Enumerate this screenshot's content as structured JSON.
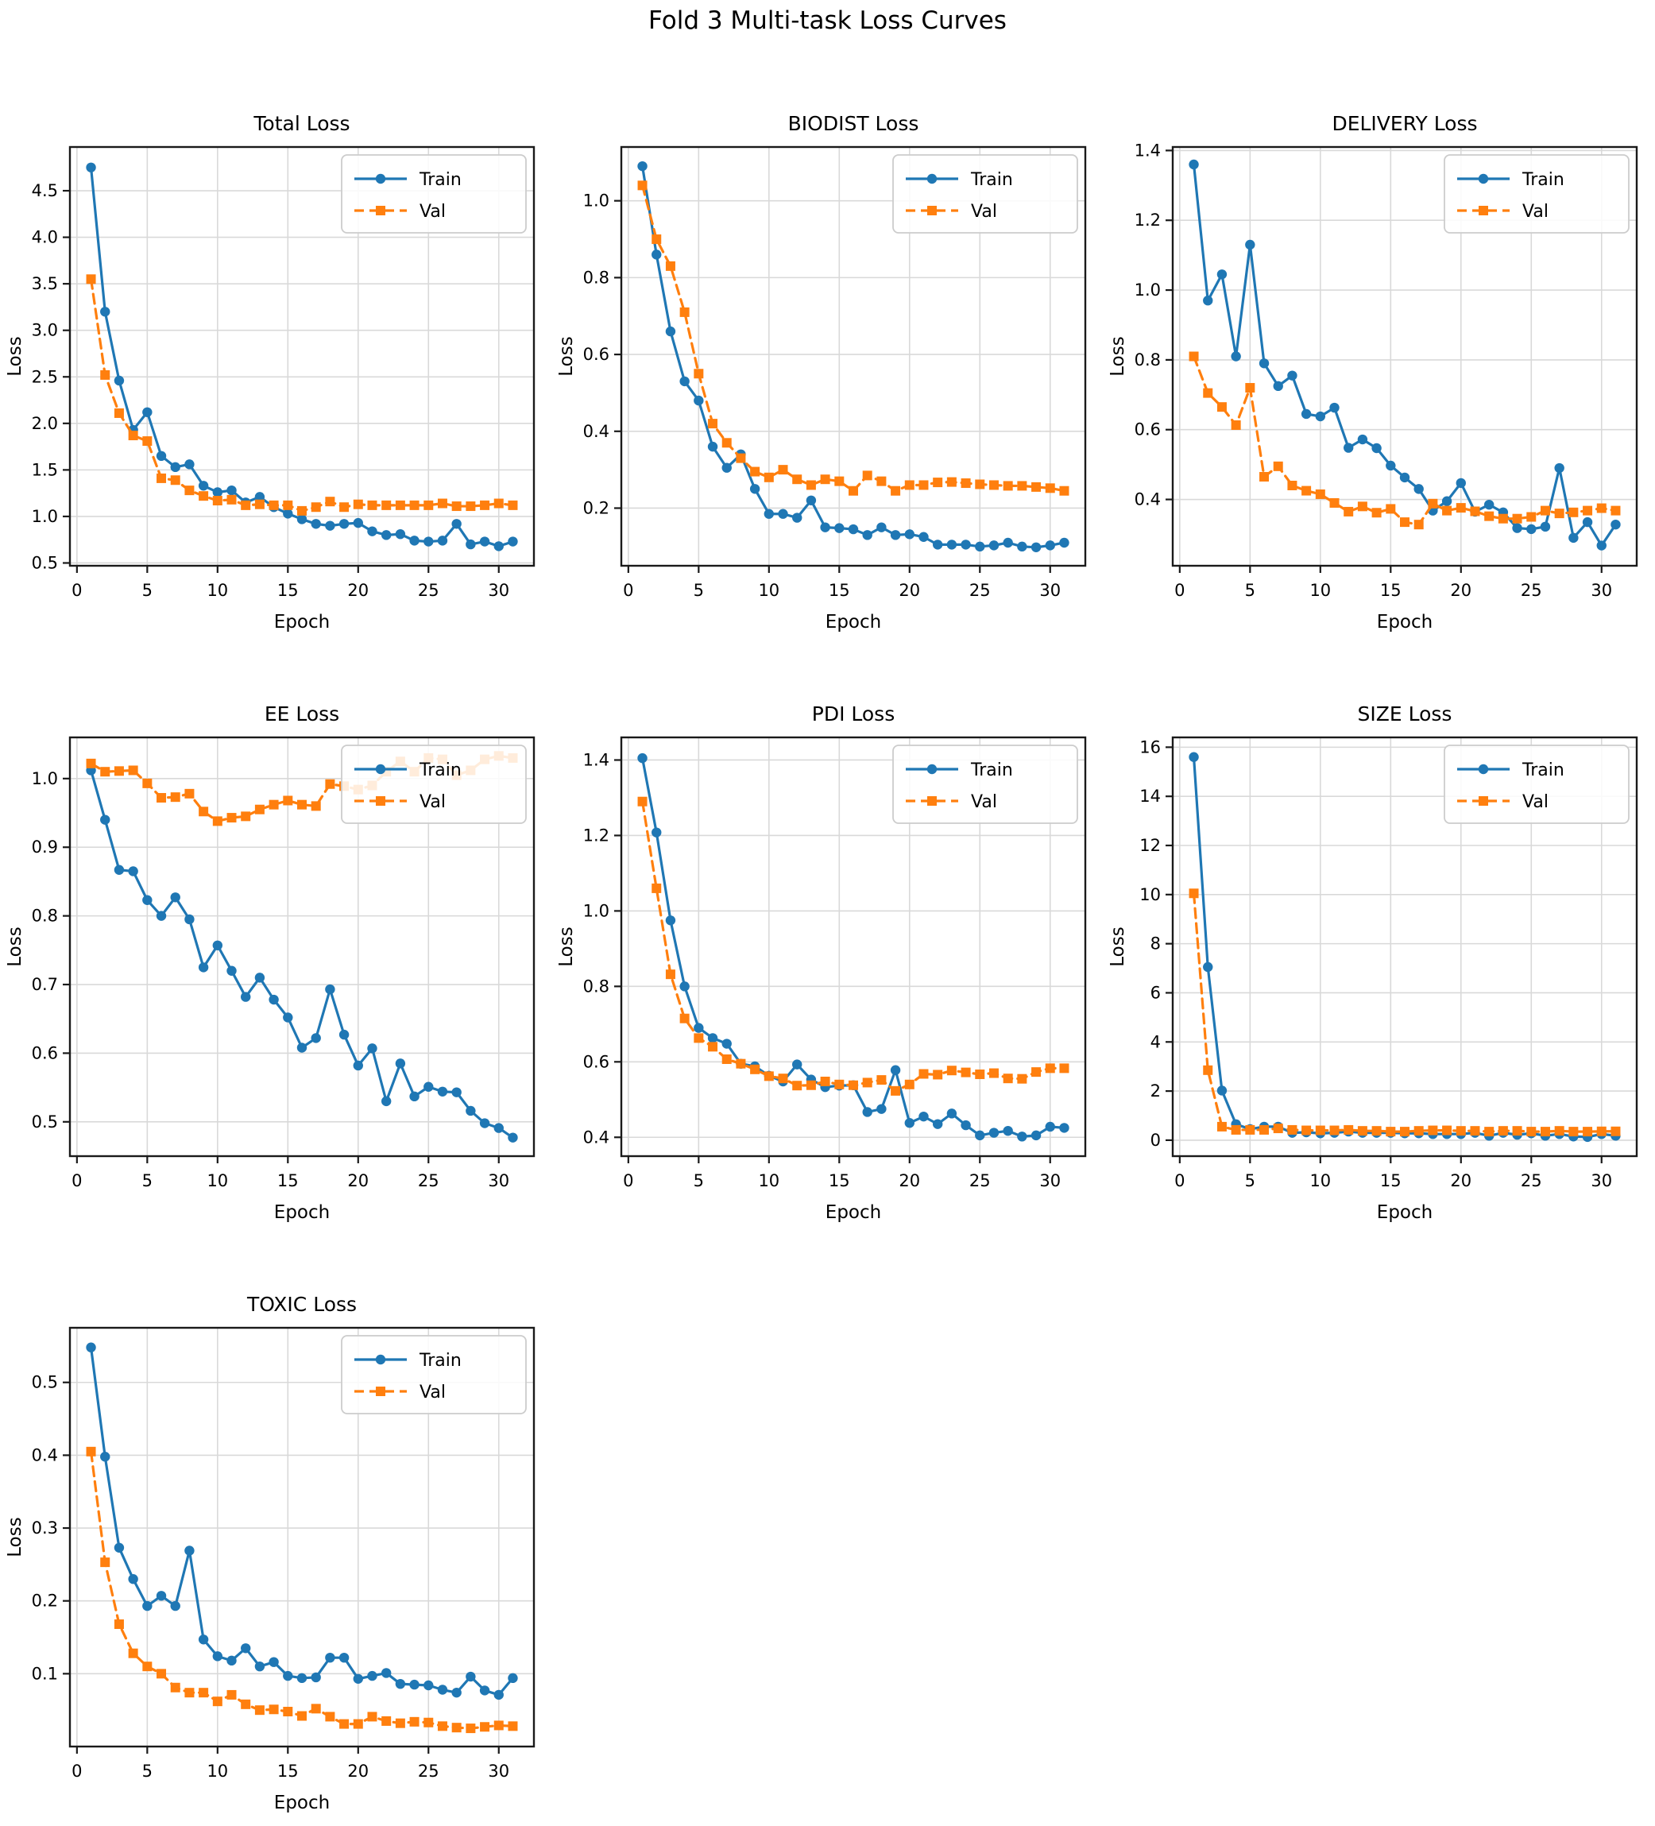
{
  "figure": {
    "title": "Fold 3 Multi-task Loss Curves"
  },
  "legend": {
    "position": "upper right",
    "train_label": "Train",
    "val_label": "Val"
  },
  "colors": {
    "train": "#1f77b4",
    "val": "#ff7f0e",
    "grid": "#d9d9d9",
    "spine": "#1a1a1a",
    "text": "#000000",
    "legend_border": "#cccccc",
    "legend_fill": "#ffffff"
  },
  "chart_data": [
    {
      "type": "line",
      "title": "Total Loss",
      "xlabel": "Epoch",
      "ylabel": "Loss",
      "x": [
        1,
        2,
        3,
        4,
        5,
        6,
        7,
        8,
        9,
        10,
        11,
        12,
        13,
        14,
        15,
        16,
        17,
        18,
        19,
        20,
        21,
        22,
        23,
        24,
        25,
        26,
        27,
        28,
        29,
        30,
        31
      ],
      "xlim": [
        -0.5,
        32.5
      ],
      "ylim": [
        0.47,
        4.97
      ],
      "xticks": [
        0,
        5,
        10,
        15,
        20,
        25,
        30
      ],
      "yticks": [
        0.5,
        1.0,
        1.5,
        2.0,
        2.5,
        3.0,
        3.5,
        4.0,
        4.5
      ],
      "ytick_labels": [
        "0.5",
        "1.0",
        "1.5",
        "2.0",
        "2.5",
        "3.0",
        "3.5",
        "4.0",
        "4.5"
      ],
      "grid": true,
      "legend_position": "upper right",
      "series": [
        {
          "name": "Train",
          "style": "solid",
          "marker": "circle",
          "values": [
            4.75,
            3.2,
            2.46,
            1.93,
            2.12,
            1.65,
            1.53,
            1.56,
            1.33,
            1.26,
            1.28,
            1.15,
            1.21,
            1.1,
            1.03,
            0.97,
            0.92,
            0.9,
            0.92,
            0.93,
            0.84,
            0.8,
            0.81,
            0.74,
            0.73,
            0.74,
            0.92,
            0.7,
            0.73,
            0.68,
            0.73
          ]
        },
        {
          "name": "Val",
          "style": "dashed",
          "marker": "square",
          "values": [
            3.55,
            2.52,
            2.11,
            1.87,
            1.81,
            1.41,
            1.39,
            1.28,
            1.22,
            1.17,
            1.18,
            1.12,
            1.13,
            1.12,
            1.12,
            1.06,
            1.1,
            1.16,
            1.1,
            1.13,
            1.12,
            1.12,
            1.12,
            1.12,
            1.12,
            1.14,
            1.11,
            1.11,
            1.12,
            1.14,
            1.12
          ]
        }
      ]
    },
    {
      "type": "line",
      "title": "BIODIST Loss",
      "xlabel": "Epoch",
      "ylabel": "Loss",
      "x": [
        1,
        2,
        3,
        4,
        5,
        6,
        7,
        8,
        9,
        10,
        11,
        12,
        13,
        14,
        15,
        16,
        17,
        18,
        19,
        20,
        21,
        22,
        23,
        24,
        25,
        26,
        27,
        28,
        29,
        30,
        31
      ],
      "xlim": [
        -0.5,
        32.5
      ],
      "ylim": [
        0.05,
        1.14
      ],
      "xticks": [
        0,
        5,
        10,
        15,
        20,
        25,
        30
      ],
      "yticks": [
        0.2,
        0.4,
        0.6,
        0.8,
        1.0
      ],
      "ytick_labels": [
        "0.2",
        "0.4",
        "0.6",
        "0.8",
        "1.0"
      ],
      "grid": true,
      "legend_position": "upper right",
      "series": [
        {
          "name": "Train",
          "style": "solid",
          "marker": "circle",
          "values": [
            1.09,
            0.86,
            0.66,
            0.53,
            0.48,
            0.36,
            0.305,
            0.34,
            0.25,
            0.185,
            0.185,
            0.175,
            0.22,
            0.15,
            0.148,
            0.145,
            0.13,
            0.15,
            0.13,
            0.132,
            0.125,
            0.105,
            0.105,
            0.105,
            0.1,
            0.103,
            0.11,
            0.1,
            0.098,
            0.103,
            0.11
          ]
        },
        {
          "name": "Val",
          "style": "dashed",
          "marker": "square",
          "values": [
            1.04,
            0.9,
            0.83,
            0.71,
            0.55,
            0.42,
            0.37,
            0.33,
            0.295,
            0.28,
            0.3,
            0.275,
            0.26,
            0.275,
            0.27,
            0.245,
            0.285,
            0.27,
            0.245,
            0.26,
            0.26,
            0.267,
            0.268,
            0.265,
            0.262,
            0.26,
            0.258,
            0.258,
            0.255,
            0.252,
            0.245
          ]
        }
      ]
    },
    {
      "type": "line",
      "title": "DELIVERY Loss",
      "xlabel": "Epoch",
      "ylabel": "Loss",
      "x": [
        1,
        2,
        3,
        4,
        5,
        6,
        7,
        8,
        9,
        10,
        11,
        12,
        13,
        14,
        15,
        16,
        17,
        18,
        19,
        20,
        21,
        22,
        23,
        24,
        25,
        26,
        27,
        28,
        29,
        30,
        31
      ],
      "xlim": [
        -0.5,
        32.5
      ],
      "ylim": [
        0.21,
        1.41
      ],
      "xticks": [
        0,
        5,
        10,
        15,
        20,
        25,
        30
      ],
      "yticks": [
        0.4,
        0.6,
        0.8,
        1.0,
        1.2,
        1.4
      ],
      "ytick_labels": [
        "0.4",
        "0.6",
        "0.8",
        "1.0",
        "1.2",
        "1.4"
      ],
      "grid": true,
      "legend_position": "upper right",
      "series": [
        {
          "name": "Train",
          "style": "solid",
          "marker": "circle",
          "values": [
            1.36,
            0.97,
            1.045,
            0.81,
            1.13,
            0.79,
            0.725,
            0.755,
            0.645,
            0.638,
            0.663,
            0.548,
            0.572,
            0.547,
            0.497,
            0.463,
            0.43,
            0.368,
            0.395,
            0.447,
            0.365,
            0.385,
            0.363,
            0.318,
            0.315,
            0.322,
            0.49,
            0.29,
            0.335,
            0.268,
            0.328
          ]
        },
        {
          "name": "Val",
          "style": "dashed",
          "marker": "square",
          "values": [
            0.81,
            0.705,
            0.665,
            0.613,
            0.72,
            0.465,
            0.495,
            0.44,
            0.425,
            0.415,
            0.39,
            0.365,
            0.38,
            0.362,
            0.373,
            0.335,
            0.328,
            0.388,
            0.368,
            0.376,
            0.366,
            0.352,
            0.345,
            0.345,
            0.35,
            0.368,
            0.36,
            0.363,
            0.368,
            0.375,
            0.368
          ]
        }
      ]
    },
    {
      "type": "line",
      "title": "EE Loss",
      "xlabel": "Epoch",
      "ylabel": "Loss",
      "x": [
        1,
        2,
        3,
        4,
        5,
        6,
        7,
        8,
        9,
        10,
        11,
        12,
        13,
        14,
        15,
        16,
        17,
        18,
        19,
        20,
        21,
        22,
        23,
        24,
        25,
        26,
        27,
        28,
        29,
        30,
        31
      ],
      "xlim": [
        -0.5,
        32.5
      ],
      "ylim": [
        0.45,
        1.06
      ],
      "xticks": [
        0,
        5,
        10,
        15,
        20,
        25,
        30
      ],
      "yticks": [
        0.5,
        0.6,
        0.7,
        0.8,
        0.9,
        1.0
      ],
      "ytick_labels": [
        "0.5",
        "0.6",
        "0.7",
        "0.8",
        "0.9",
        "1.0"
      ],
      "grid": true,
      "legend_position": "upper right",
      "series": [
        {
          "name": "Train",
          "style": "solid",
          "marker": "circle",
          "values": [
            1.012,
            0.94,
            0.867,
            0.865,
            0.823,
            0.8,
            0.827,
            0.795,
            0.725,
            0.757,
            0.72,
            0.682,
            0.71,
            0.678,
            0.652,
            0.608,
            0.622,
            0.693,
            0.627,
            0.582,
            0.607,
            0.53,
            0.585,
            0.537,
            0.551,
            0.544,
            0.543,
            0.516,
            0.498,
            0.491,
            0.477
          ]
        },
        {
          "name": "Val",
          "style": "dashed",
          "marker": "square",
          "values": [
            1.022,
            1.01,
            1.011,
            1.012,
            0.993,
            0.972,
            0.973,
            0.978,
            0.952,
            0.938,
            0.943,
            0.945,
            0.955,
            0.962,
            0.968,
            0.962,
            0.96,
            0.992,
            0.989,
            0.984,
            0.99,
            1.01,
            1.025,
            1.01,
            1.03,
            1.028,
            1.005,
            1.012,
            1.028,
            1.033,
            1.03
          ]
        }
      ]
    },
    {
      "type": "line",
      "title": "PDI Loss",
      "xlabel": "Epoch",
      "ylabel": "Loss",
      "x": [
        1,
        2,
        3,
        4,
        5,
        6,
        7,
        8,
        9,
        10,
        11,
        12,
        13,
        14,
        15,
        16,
        17,
        18,
        19,
        20,
        21,
        22,
        23,
        24,
        25,
        26,
        27,
        28,
        29,
        30,
        31
      ],
      "xlim": [
        -0.5,
        32.5
      ],
      "ylim": [
        0.35,
        1.46
      ],
      "xticks": [
        0,
        5,
        10,
        15,
        20,
        25,
        30
      ],
      "yticks": [
        0.4,
        0.6,
        0.8,
        1.0,
        1.2,
        1.4
      ],
      "ytick_labels": [
        "0.4",
        "0.6",
        "0.8",
        "1.0",
        "1.2",
        "1.4"
      ],
      "grid": true,
      "legend_position": "upper right",
      "series": [
        {
          "name": "Train",
          "style": "solid",
          "marker": "circle",
          "values": [
            1.405,
            1.208,
            0.975,
            0.8,
            0.69,
            0.663,
            0.648,
            0.595,
            0.588,
            0.563,
            0.548,
            0.593,
            0.553,
            0.533,
            0.537,
            0.538,
            0.467,
            0.475,
            0.578,
            0.438,
            0.455,
            0.435,
            0.463,
            0.432,
            0.405,
            0.412,
            0.417,
            0.402,
            0.405,
            0.428,
            0.425
          ]
        },
        {
          "name": "Val",
          "style": "dashed",
          "marker": "square",
          "values": [
            1.29,
            1.06,
            0.832,
            0.715,
            0.663,
            0.64,
            0.607,
            0.595,
            0.58,
            0.562,
            0.556,
            0.537,
            0.538,
            0.548,
            0.54,
            0.538,
            0.545,
            0.552,
            0.523,
            0.54,
            0.568,
            0.566,
            0.577,
            0.572,
            0.567,
            0.57,
            0.556,
            0.555,
            0.573,
            0.583,
            0.583
          ]
        }
      ]
    },
    {
      "type": "line",
      "title": "SIZE Loss",
      "xlabel": "Epoch",
      "ylabel": "Loss",
      "x": [
        1,
        2,
        3,
        4,
        5,
        6,
        7,
        8,
        9,
        10,
        11,
        12,
        13,
        14,
        15,
        16,
        17,
        18,
        19,
        20,
        21,
        22,
        23,
        24,
        25,
        26,
        27,
        28,
        29,
        30,
        31
      ],
      "xlim": [
        -0.5,
        32.5
      ],
      "ylim": [
        -0.65,
        16.4
      ],
      "xticks": [
        0,
        5,
        10,
        15,
        20,
        25,
        30
      ],
      "yticks": [
        0,
        2,
        4,
        6,
        8,
        10,
        12,
        14,
        16
      ],
      "ytick_labels": [
        "0",
        "2",
        "4",
        "6",
        "8",
        "10",
        "12",
        "14",
        "16"
      ],
      "grid": true,
      "legend_position": "upper right",
      "series": [
        {
          "name": "Train",
          "style": "solid",
          "marker": "circle",
          "values": [
            15.6,
            7.05,
            2.02,
            0.65,
            0.45,
            0.55,
            0.55,
            0.3,
            0.32,
            0.28,
            0.3,
            0.35,
            0.3,
            0.3,
            0.3,
            0.28,
            0.28,
            0.25,
            0.25,
            0.25,
            0.3,
            0.18,
            0.3,
            0.22,
            0.28,
            0.18,
            0.25,
            0.15,
            0.13,
            0.25,
            0.18
          ]
        },
        {
          "name": "Val",
          "style": "dashed",
          "marker": "square",
          "values": [
            10.05,
            2.85,
            0.55,
            0.42,
            0.42,
            0.42,
            0.48,
            0.42,
            0.4,
            0.4,
            0.4,
            0.42,
            0.38,
            0.38,
            0.35,
            0.35,
            0.38,
            0.4,
            0.4,
            0.38,
            0.38,
            0.35,
            0.38,
            0.38,
            0.35,
            0.35,
            0.38,
            0.35,
            0.35,
            0.36,
            0.36
          ]
        }
      ]
    },
    {
      "type": "line",
      "title": "TOXIC Loss",
      "xlabel": "Epoch",
      "ylabel": "Loss",
      "x": [
        1,
        2,
        3,
        4,
        5,
        6,
        7,
        8,
        9,
        10,
        11,
        12,
        13,
        14,
        15,
        16,
        17,
        18,
        19,
        20,
        21,
        22,
        23,
        24,
        25,
        26,
        27,
        28,
        29,
        30,
        31
      ],
      "xlim": [
        -0.5,
        32.5
      ],
      "ylim": [
        0.0,
        0.575
      ],
      "xticks": [
        0,
        5,
        10,
        15,
        20,
        25,
        30
      ],
      "yticks": [
        0.1,
        0.2,
        0.3,
        0.4,
        0.5
      ],
      "ytick_labels": [
        "0.1",
        "0.2",
        "0.3",
        "0.4",
        "0.5"
      ],
      "grid": true,
      "legend_position": "upper right",
      "series": [
        {
          "name": "Train",
          "style": "solid",
          "marker": "circle",
          "values": [
            0.548,
            0.398,
            0.273,
            0.23,
            0.193,
            0.207,
            0.193,
            0.269,
            0.147,
            0.124,
            0.118,
            0.135,
            0.11,
            0.116,
            0.097,
            0.094,
            0.095,
            0.122,
            0.122,
            0.093,
            0.097,
            0.101,
            0.086,
            0.085,
            0.084,
            0.078,
            0.074,
            0.096,
            0.077,
            0.071,
            0.094
          ]
        },
        {
          "name": "Val",
          "style": "dashed",
          "marker": "square",
          "values": [
            0.405,
            0.253,
            0.168,
            0.128,
            0.11,
            0.1,
            0.081,
            0.074,
            0.074,
            0.062,
            0.071,
            0.058,
            0.05,
            0.051,
            0.048,
            0.042,
            0.052,
            0.041,
            0.031,
            0.031,
            0.041,
            0.035,
            0.032,
            0.034,
            0.033,
            0.028,
            0.026,
            0.025,
            0.027,
            0.029,
            0.028
          ]
        }
      ]
    }
  ]
}
